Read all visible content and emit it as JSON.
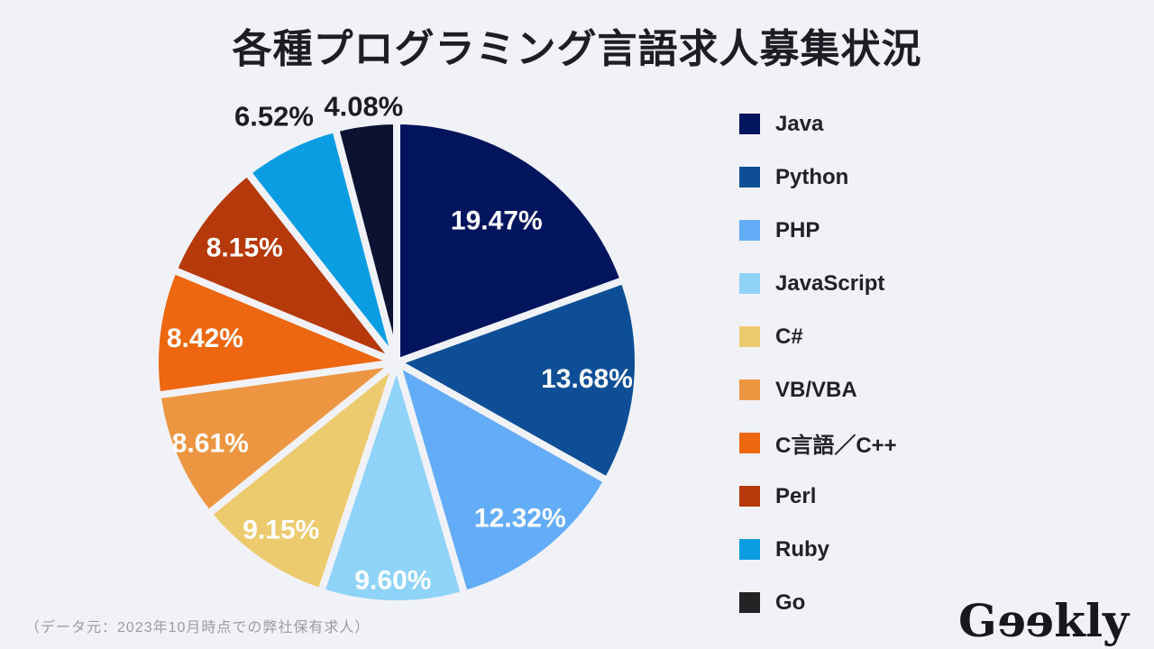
{
  "page": {
    "title": "各種プログラミング言語求人募集状況",
    "source_note": "（データ元：2023年10月時点での弊社保有求人）",
    "logo_text": "Geekly",
    "background_color": "#f1f2f7"
  },
  "chart_data": {
    "type": "pie",
    "title": "各種プログラミング言語求人募集状況",
    "start_angle_deg": -90,
    "direction": "clockwise",
    "legend_position": "right",
    "gap_color": "#f1f2f7",
    "inside_label_color": "#ffffff",
    "outside_label_color": "#1c1c24",
    "slices": [
      {
        "label": "Java",
        "value": 19.47,
        "display": "19.47%",
        "color": "#02145e",
        "label_placement": "inside",
        "label_r_frac": 0.72
      },
      {
        "label": "Python",
        "value": 13.68,
        "display": "13.68%",
        "color": "#0d4e96",
        "label_placement": "inside",
        "label_r_frac": 0.79
      },
      {
        "label": "PHP",
        "value": 12.32,
        "display": "12.32%",
        "color": "#63acf7",
        "label_placement": "inside",
        "label_r_frac": 0.82
      },
      {
        "label": "JavaScript",
        "value": 9.6,
        "display": "9.60%",
        "color": "#8fd3f8",
        "label_placement": "inside",
        "label_r_frac": 0.9
      },
      {
        "label": "C#",
        "value": 9.15,
        "display": "9.15%",
        "color": "#ecca6e",
        "label_placement": "inside",
        "label_r_frac": 0.84
      },
      {
        "label": "VB/VBA",
        "value": 8.61,
        "display": "8.61%",
        "color": "#ec9642",
        "label_placement": "inside",
        "label_r_frac": 0.84
      },
      {
        "label": "C言語／C++",
        "value": 8.42,
        "display": "8.42%",
        "color": "#ec670f",
        "label_placement": "inside",
        "label_r_frac": 0.8
      },
      {
        "label": "Perl",
        "value": 8.15,
        "display": "8.15%",
        "color": "#b5390b",
        "label_placement": "inside",
        "label_r_frac": 0.79
      },
      {
        "label": "Ruby",
        "value": 6.52,
        "display": "6.52%",
        "color": "#0b9de2",
        "label_placement": "outside",
        "label_r_frac": 1.14
      },
      {
        "label": "Go",
        "value": 4.08,
        "display": "4.08%",
        "color": "#0b1232",
        "legend_color": "#232326",
        "label_placement": "outside",
        "label_r_frac": 1.07
      }
    ]
  }
}
